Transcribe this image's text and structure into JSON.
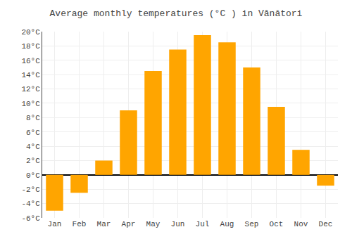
{
  "chart_data": {
    "type": "bar",
    "title": "Average monthly temperatures (°C ) in Vânători",
    "categories": [
      "Jan",
      "Feb",
      "Mar",
      "Apr",
      "May",
      "Jun",
      "Jul",
      "Aug",
      "Sep",
      "Oct",
      "Nov",
      "Dec"
    ],
    "values": [
      -5.0,
      -2.5,
      2.0,
      9.0,
      14.5,
      17.5,
      19.5,
      18.5,
      15.0,
      9.5,
      3.5,
      -1.5
    ],
    "color": "#FFA500",
    "ylim": [
      -6,
      20
    ],
    "yticks": [
      {
        "value": -6,
        "label": "-6°C"
      },
      {
        "value": -4,
        "label": "-4°C"
      },
      {
        "value": -2,
        "label": "-2°C"
      },
      {
        "value": 0,
        "label": "0°C"
      },
      {
        "value": 2,
        "label": "2°C"
      },
      {
        "value": 4,
        "label": "4°C"
      },
      {
        "value": 6,
        "label": "6°C"
      },
      {
        "value": 8,
        "label": "8°C"
      },
      {
        "value": 10,
        "label": "10°C"
      },
      {
        "value": 12,
        "label": "12°C"
      },
      {
        "value": 14,
        "label": "14°C"
      },
      {
        "value": 16,
        "label": "16°C"
      },
      {
        "value": 18,
        "label": "18°C"
      },
      {
        "value": 20,
        "label": "20°C"
      }
    ],
    "grid": true
  }
}
